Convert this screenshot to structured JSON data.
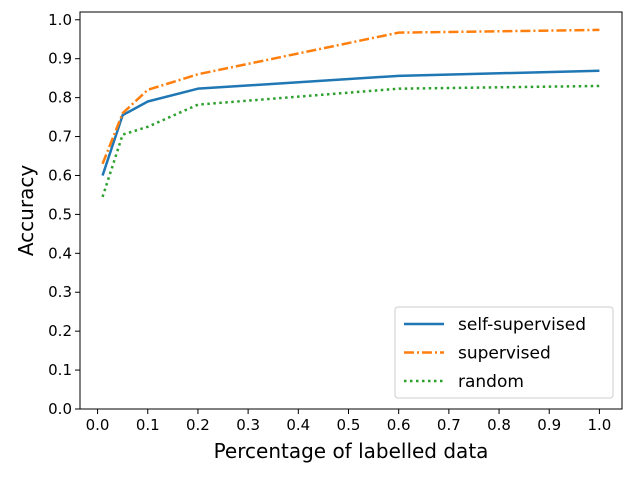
{
  "chart_data": {
    "type": "line",
    "title": "",
    "xlabel": "Percentage of labelled data",
    "ylabel": "Accuracy",
    "xlim": [
      -0.035,
      1.045
    ],
    "ylim": [
      0.0,
      1.02
    ],
    "xticks": [
      "0.0",
      "0.1",
      "0.2",
      "0.3",
      "0.4",
      "0.5",
      "0.6",
      "0.7",
      "0.8",
      "0.9",
      "1.0"
    ],
    "yticks": [
      "0.0",
      "0.1",
      "0.2",
      "0.3",
      "0.4",
      "0.5",
      "0.6",
      "0.7",
      "0.8",
      "0.9",
      "1.0"
    ],
    "grid": false,
    "legend": {
      "placement": "lower-right"
    },
    "x": [
      0.01,
      0.05,
      0.1,
      0.2,
      0.6,
      1.0
    ],
    "series": [
      {
        "name": "self-supervised",
        "color": "#1f77b4",
        "line_style": "solid",
        "values": [
          0.6,
          0.755,
          0.79,
          0.823,
          0.856,
          0.869
        ]
      },
      {
        "name": "supervised",
        "color": "#ff7f0e",
        "line_style": "dashdot",
        "values": [
          0.63,
          0.76,
          0.82,
          0.86,
          0.967,
          0.974
        ]
      },
      {
        "name": "random",
        "color": "#2ca02c",
        "line_style": "dotted",
        "values": [
          0.545,
          0.705,
          0.725,
          0.782,
          0.823,
          0.83
        ]
      }
    ]
  }
}
